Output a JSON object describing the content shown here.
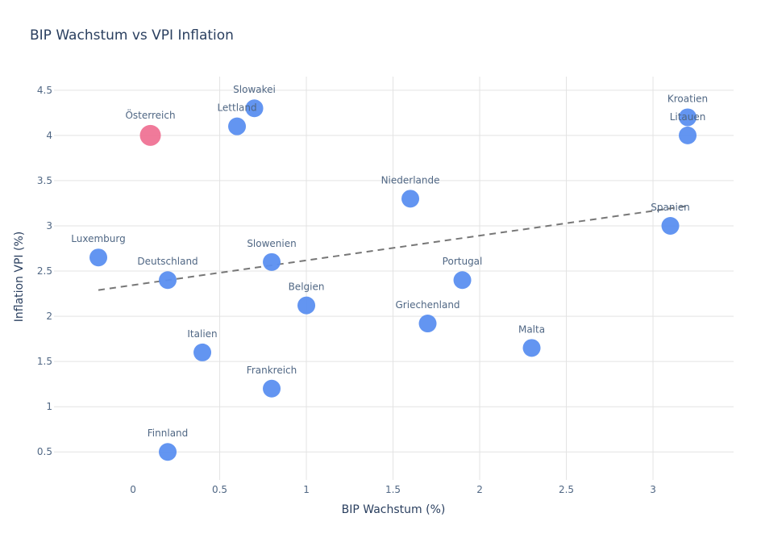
{
  "chart_data": {
    "type": "scatter",
    "title": "BIP Wachstum vs VPI Inflation",
    "xlabel": "BIP Wachstum (%)",
    "ylabel": "Inflation VPI (%)",
    "xlim": [
      -0.456,
      3.465
    ],
    "ylim": [
      0.19,
      4.65
    ],
    "grid": true,
    "x_ticks": [
      0,
      0.5,
      1,
      1.5,
      2,
      2.5,
      3
    ],
    "x_tick_labels": [
      "0",
      "0.5",
      "1",
      "1.5",
      "2",
      "2.5",
      "3"
    ],
    "y_ticks": [
      0.5,
      1,
      1.5,
      2,
      2.5,
      3,
      3.5,
      4,
      4.5
    ],
    "y_tick_labels": [
      "0.5",
      "1",
      "1.5",
      "2",
      "2.5",
      "3",
      "3.5",
      "4",
      "4.5"
    ],
    "colors": {
      "default": "#5b8ff0",
      "highlight": "#ee6b8f",
      "trend": "#777777"
    },
    "points": [
      {
        "label": "Österreich",
        "x": 0.1,
        "y": 4.0,
        "highlight": true
      },
      {
        "label": "Slowakei",
        "x": 0.7,
        "y": 4.3,
        "highlight": false
      },
      {
        "label": "Lettland",
        "x": 0.6,
        "y": 4.1,
        "highlight": false
      },
      {
        "label": "Kroatien",
        "x": 3.2,
        "y": 4.2,
        "highlight": false
      },
      {
        "label": "Litauen",
        "x": 3.2,
        "y": 4.0,
        "highlight": false
      },
      {
        "label": "Niederlande",
        "x": 1.6,
        "y": 3.3,
        "highlight": false
      },
      {
        "label": "Spanien",
        "x": 3.1,
        "y": 3.0,
        "highlight": false
      },
      {
        "label": "Luxemburg",
        "x": -0.2,
        "y": 2.65,
        "highlight": false
      },
      {
        "label": "Slowenien",
        "x": 0.8,
        "y": 2.6,
        "highlight": false
      },
      {
        "label": "Deutschland",
        "x": 0.2,
        "y": 2.4,
        "highlight": false
      },
      {
        "label": "Portugal",
        "x": 1.9,
        "y": 2.4,
        "highlight": false
      },
      {
        "label": "Belgien",
        "x": 1.0,
        "y": 2.12,
        "highlight": false
      },
      {
        "label": "Griechenland",
        "x": 1.7,
        "y": 1.92,
        "highlight": false
      },
      {
        "label": "Malta",
        "x": 2.3,
        "y": 1.65,
        "highlight": false
      },
      {
        "label": "Italien",
        "x": 0.4,
        "y": 1.6,
        "highlight": false
      },
      {
        "label": "Frankreich",
        "x": 0.8,
        "y": 1.2,
        "highlight": false
      },
      {
        "label": "Finnland",
        "x": 0.2,
        "y": 0.5,
        "highlight": false
      }
    ],
    "trendline": {
      "style": "dashed",
      "x": [
        -0.2,
        3.2
      ],
      "y": [
        2.29,
        3.22
      ]
    }
  }
}
